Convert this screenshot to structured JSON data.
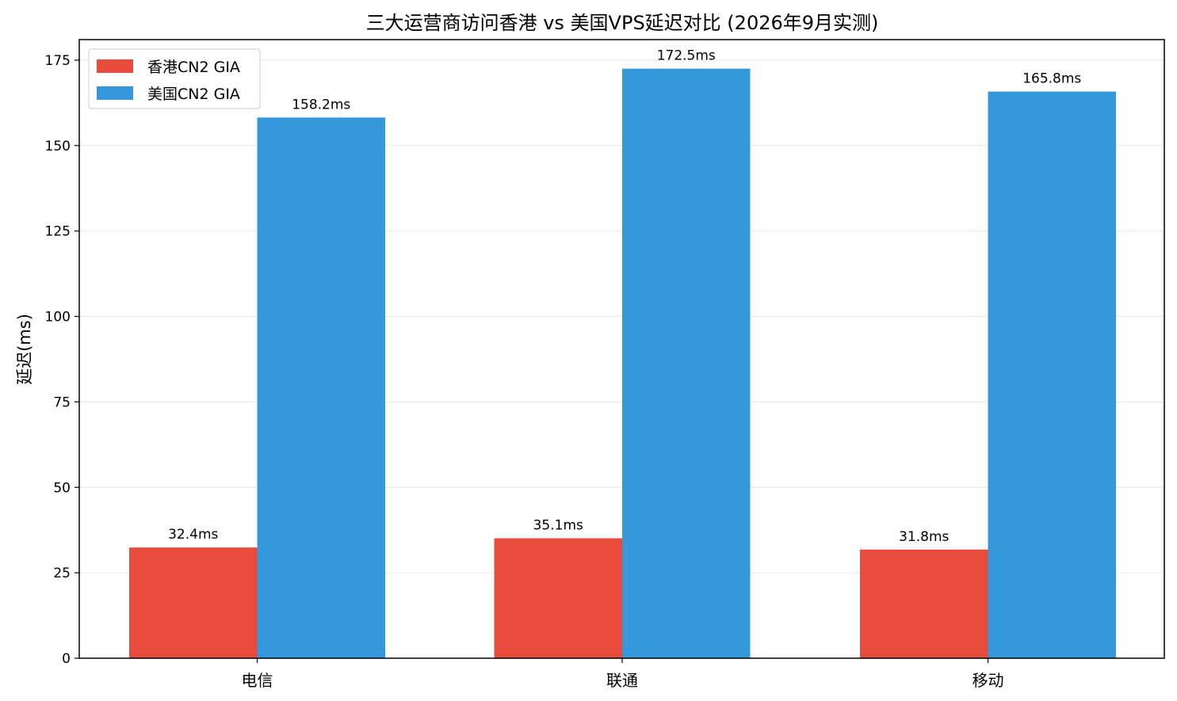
{
  "chart_data": {
    "type": "bar",
    "title": "三大运营商访问香港 vs 美国VPS延迟对比 (2026年9月实测)",
    "xlabel": "",
    "ylabel": "延迟(ms)",
    "categories": [
      "电信",
      "联通",
      "移动"
    ],
    "series": [
      {
        "name": "香港CN2 GIA",
        "color": "#e74c3c",
        "values": [
          32.4,
          35.1,
          31.8
        ],
        "labels": [
          "32.4ms",
          "35.1ms",
          "31.8ms"
        ]
      },
      {
        "name": "美国CN2 GIA",
        "color": "#3498db",
        "values": [
          158.2,
          172.5,
          165.8
        ],
        "labels": [
          "158.2ms",
          "172.5ms",
          "165.8ms"
        ]
      }
    ],
    "ylim": [
      0,
      181
    ],
    "yticks": [
      0,
      25,
      50,
      75,
      100,
      125,
      150,
      175
    ],
    "grid": "horizontal",
    "legend_position": "top-left"
  }
}
